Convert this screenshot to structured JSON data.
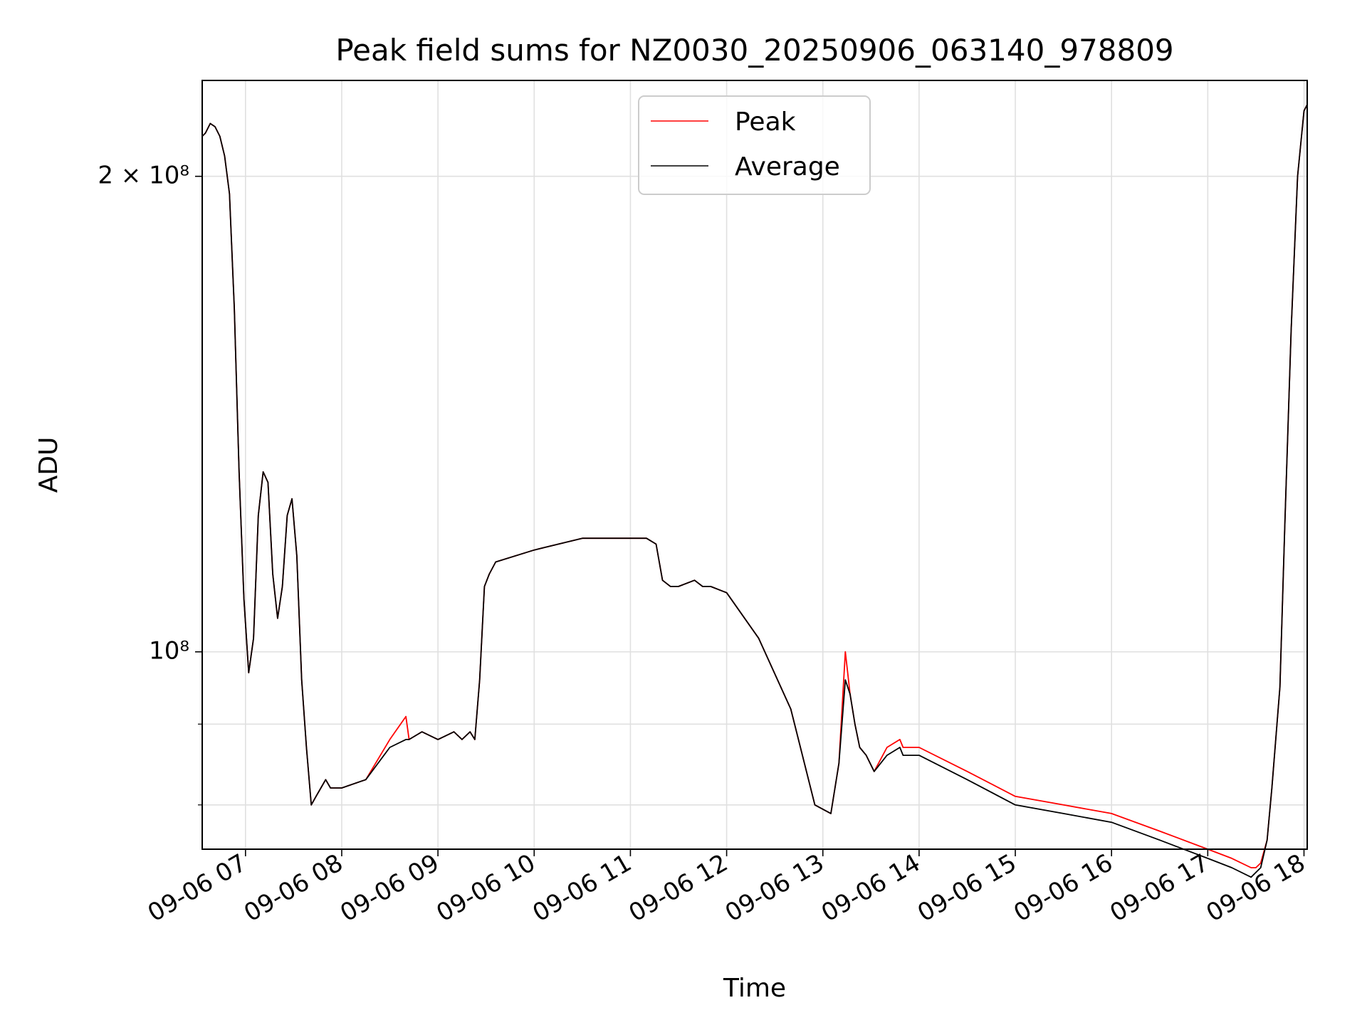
{
  "chart_data": {
    "type": "line",
    "title": "Peak field sums for NZ0030_20250906_063140_978809",
    "xlabel": "Time",
    "ylabel": "ADU",
    "y_scale": "log",
    "xlim": [
      "2025-09-06 06:33",
      "2025-09-06 18:02"
    ],
    "ylim": [
      75000000,
      230000000
    ],
    "grid": true,
    "legend_position": "top-center",
    "x_ticks": [
      "09-06 07",
      "09-06 08",
      "09-06 09",
      "09-06 10",
      "09-06 11",
      "09-06 12",
      "09-06 13",
      "09-06 14",
      "09-06 15",
      "09-06 16",
      "09-06 17",
      "09-06 18"
    ],
    "y_tick_labels": [
      {
        "value": 200000000,
        "label": "2 × 10⁸"
      },
      {
        "value": 100000000,
        "label": "10⁸"
      }
    ],
    "y_minor_ticks": [
      80000000,
      90000000
    ],
    "series": [
      {
        "name": "Peak",
        "color": "#ff0000"
      },
      {
        "name": "Average",
        "color": "#000000"
      }
    ],
    "x": [
      "06:33",
      "06:35",
      "06:38",
      "06:41",
      "06:44",
      "06:47",
      "06:50",
      "06:53",
      "06:56",
      "06:59",
      "07:02",
      "07:05",
      "07:08",
      "07:11",
      "07:14",
      "07:17",
      "07:20",
      "07:23",
      "07:26",
      "07:29",
      "07:32",
      "07:35",
      "07:38",
      "07:41",
      "07:44",
      "07:47",
      "07:50",
      "07:53",
      "08:00",
      "08:15",
      "08:30",
      "08:40",
      "08:42",
      "08:50",
      "09:00",
      "09:10",
      "09:15",
      "09:20",
      "09:23",
      "09:26",
      "09:29",
      "09:32",
      "09:36",
      "10:00",
      "10:30",
      "10:50",
      "11:10",
      "11:16",
      "11:20",
      "11:25",
      "11:30",
      "11:40",
      "11:45",
      "11:50",
      "12:00",
      "12:20",
      "12:40",
      "12:55",
      "13:05",
      "13:10",
      "13:14",
      "13:17",
      "13:20",
      "13:23",
      "13:27",
      "13:32",
      "13:40",
      "13:48",
      "13:50",
      "14:00",
      "14:30",
      "15:00",
      "15:30",
      "16:00",
      "16:30",
      "17:00",
      "17:15",
      "17:27",
      "17:30",
      "17:33",
      "17:37",
      "17:40",
      "17:45",
      "17:48",
      "17:52",
      "17:56",
      "18:00",
      "18:02"
    ],
    "average_values": [
      212,
      213,
      216,
      215,
      212,
      206,
      195,
      165,
      130,
      108,
      97,
      102,
      122,
      130,
      128,
      112,
      105,
      110,
      122,
      125,
      115,
      96,
      87,
      80,
      81,
      82,
      83,
      82,
      82,
      83,
      87,
      88,
      88,
      89,
      88,
      89,
      88,
      89,
      88,
      96,
      110,
      112,
      114,
      116,
      118,
      118,
      118,
      117,
      111,
      110,
      110,
      111,
      110,
      110,
      109,
      102,
      92,
      80,
      79,
      85,
      96,
      94,
      90,
      87,
      86,
      84,
      86,
      87,
      86,
      86,
      83,
      80,
      79,
      78,
      76,
      74,
      73,
      72,
      72.5,
      73,
      76,
      82,
      95,
      120,
      160,
      200,
      220,
      222
    ],
    "peak_values": [
      212,
      213,
      216,
      215,
      212,
      206,
      195,
      165,
      130,
      108,
      97,
      102,
      122,
      130,
      128,
      112,
      105,
      110,
      122,
      125,
      115,
      96,
      87,
      80,
      81,
      82,
      83,
      82,
      82,
      83,
      88,
      91,
      88,
      89,
      88,
      89,
      88,
      89,
      88,
      96,
      110,
      112,
      114,
      116,
      118,
      118,
      118,
      117,
      111,
      110,
      110,
      111,
      110,
      110,
      109,
      102,
      92,
      80,
      79,
      85,
      100,
      94,
      90,
      87,
      86,
      84,
      87,
      88,
      87,
      87,
      84,
      81,
      80,
      79,
      77,
      75,
      74,
      73,
      73,
      73.5,
      76,
      82,
      95,
      120,
      160,
      200,
      220,
      222
    ],
    "values_unit": "millions of ADU"
  }
}
